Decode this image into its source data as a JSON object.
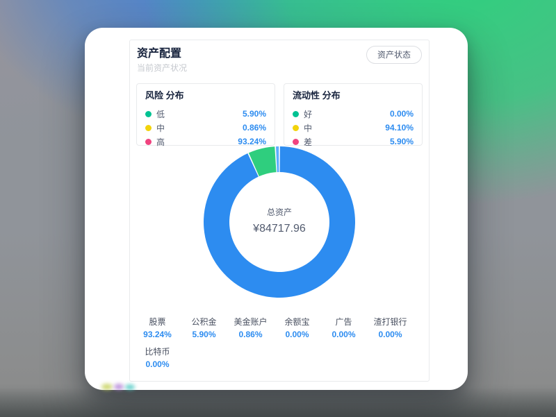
{
  "page": {
    "title": "资产配置",
    "subtitle": "当前资产状况",
    "action_button": "资产状态"
  },
  "colors": {
    "accent_blue": "#2d8cf0",
    "dot_green": "#00c292",
    "dot_yellow": "#f2d30b",
    "dot_pink": "#f0437f"
  },
  "panels": [
    {
      "title": "风险 分布",
      "rows": [
        {
          "label": "低",
          "value": "5.90%",
          "color": "#00c292"
        },
        {
          "label": "中",
          "value": "0.86%",
          "color": "#f2d30b"
        },
        {
          "label": "高",
          "value": "93.24%",
          "color": "#f0437f"
        }
      ]
    },
    {
      "title": "流动性 分布",
      "rows": [
        {
          "label": "好",
          "value": "0.00%",
          "color": "#00c292"
        },
        {
          "label": "中",
          "value": "94.10%",
          "color": "#f2d30b"
        },
        {
          "label": "差",
          "value": "5.90%",
          "color": "#f0437f"
        }
      ]
    }
  ],
  "chart_data": {
    "type": "pie",
    "donut": true,
    "center_label": "总资产",
    "center_value": "¥84717.96",
    "categories": [
      "股票",
      "公积金",
      "美金账户",
      "余额宝",
      "广告",
      "渣打银行",
      "比特币"
    ],
    "values": [
      93.24,
      5.9,
      0.86,
      0,
      0,
      0,
      0
    ],
    "colors": [
      "#2d8cf0",
      "#2fce7e",
      "#5cadff",
      "#cccccc",
      "#cccccc",
      "#cccccc",
      "#cccccc"
    ],
    "legend_position": "bottom"
  },
  "legend": [
    {
      "label": "股票",
      "value": "93.24%"
    },
    {
      "label": "公积金",
      "value": "5.90%"
    },
    {
      "label": "美金账户",
      "value": "0.86%"
    },
    {
      "label": "余额宝",
      "value": "0.00%"
    },
    {
      "label": "广告",
      "value": "0.00%"
    },
    {
      "label": "渣打银行",
      "value": "0.00%"
    },
    {
      "label": "比特币",
      "value": "0.00%"
    }
  ]
}
